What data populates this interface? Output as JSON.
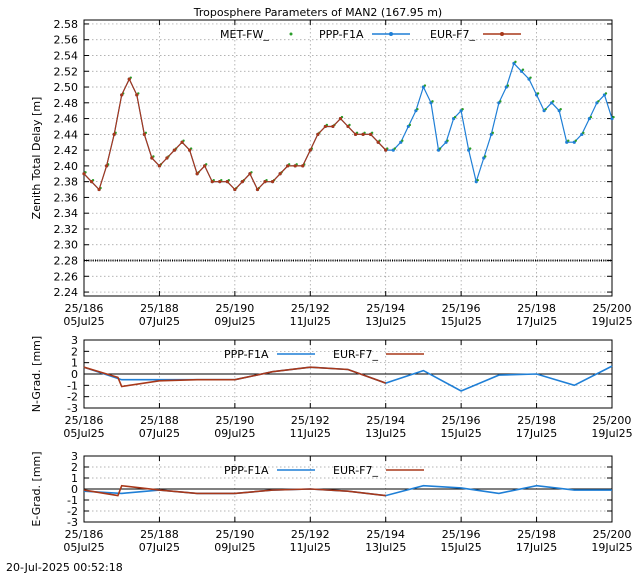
{
  "chart_data": {
    "title": "Troposphere Parameters of MAN2 (167.95 m)",
    "x_ticks": [
      {
        "top": "25/186",
        "bottom": "05Jul25"
      },
      {
        "top": "25/188",
        "bottom": "07Jul25"
      },
      {
        "top": "25/190",
        "bottom": "09Jul25"
      },
      {
        "top": "25/192",
        "bottom": "11Jul25"
      },
      {
        "top": "25/194",
        "bottom": "13Jul25"
      },
      {
        "top": "25/196",
        "bottom": "15Jul25"
      },
      {
        "top": "25/198",
        "bottom": "17Jul25"
      },
      {
        "top": "25/200",
        "bottom": "19Jul25"
      }
    ],
    "x_range_doy": [
      186,
      200
    ],
    "grid": true,
    "colors": {
      "MET-FW_": "#2a9d2a",
      "PPP-F1A": "#1f7fd6",
      "EUR-F7_": "#a8381a",
      "zero_line": "#000000"
    },
    "panels": [
      {
        "id": "ztd",
        "type": "line",
        "ylabel": "Zenith Total Delay [m]",
        "ylim": [
          2.235,
          2.585
        ],
        "yticks": [
          "2.24",
          "2.26",
          "2.28",
          "2.30",
          "2.32",
          "2.34",
          "2.36",
          "2.38",
          "2.40",
          "2.42",
          "2.44",
          "2.46",
          "2.48",
          "2.50",
          "2.52",
          "2.54",
          "2.56",
          "2.58"
        ],
        "legend": [
          "MET-FW_",
          "PPP-F1A",
          "EUR-F7_"
        ],
        "met_fw_constant": 2.28,
        "series": {
          "PPP-F1A": [
            [
              186.0,
              2.39
            ],
            [
              186.2,
              2.38
            ],
            [
              186.4,
              2.37
            ],
            [
              186.6,
              2.4
            ],
            [
              186.8,
              2.44
            ],
            [
              187.0,
              2.49
            ],
            [
              187.2,
              2.51
            ],
            [
              187.4,
              2.49
            ],
            [
              187.6,
              2.44
            ],
            [
              187.8,
              2.41
            ],
            [
              188.0,
              2.4
            ],
            [
              188.2,
              2.41
            ],
            [
              188.4,
              2.42
            ],
            [
              188.6,
              2.43
            ],
            [
              188.8,
              2.42
            ],
            [
              189.0,
              2.39
            ],
            [
              189.2,
              2.4
            ],
            [
              189.4,
              2.38
            ],
            [
              189.6,
              2.38
            ],
            [
              189.8,
              2.38
            ],
            [
              190.0,
              2.37
            ],
            [
              190.2,
              2.38
            ],
            [
              190.4,
              2.39
            ],
            [
              190.6,
              2.37
            ],
            [
              190.8,
              2.38
            ],
            [
              191.0,
              2.38
            ],
            [
              191.2,
              2.39
            ],
            [
              191.4,
              2.4
            ],
            [
              191.6,
              2.4
            ],
            [
              191.8,
              2.4
            ],
            [
              192.0,
              2.42
            ],
            [
              192.2,
              2.44
            ],
            [
              192.4,
              2.45
            ],
            [
              192.6,
              2.45
            ],
            [
              192.8,
              2.46
            ],
            [
              193.0,
              2.45
            ],
            [
              193.2,
              2.44
            ],
            [
              193.4,
              2.44
            ],
            [
              193.6,
              2.44
            ],
            [
              193.8,
              2.43
            ],
            [
              194.0,
              2.42
            ],
            [
              194.2,
              2.42
            ],
            [
              194.4,
              2.43
            ],
            [
              194.6,
              2.45
            ],
            [
              194.8,
              2.47
            ],
            [
              195.0,
              2.5
            ],
            [
              195.2,
              2.48
            ],
            [
              195.4,
              2.42
            ],
            [
              195.6,
              2.43
            ],
            [
              195.8,
              2.46
            ],
            [
              196.0,
              2.47
            ],
            [
              196.2,
              2.42
            ],
            [
              196.4,
              2.38
            ],
            [
              196.6,
              2.41
            ],
            [
              196.8,
              2.44
            ],
            [
              197.0,
              2.48
            ],
            [
              197.2,
              2.5
            ],
            [
              197.4,
              2.53
            ],
            [
              197.6,
              2.52
            ],
            [
              197.8,
              2.51
            ],
            [
              198.0,
              2.49
            ],
            [
              198.2,
              2.47
            ],
            [
              198.4,
              2.48
            ],
            [
              198.6,
              2.47
            ],
            [
              198.8,
              2.43
            ],
            [
              199.0,
              2.43
            ],
            [
              199.2,
              2.44
            ],
            [
              199.4,
              2.46
            ],
            [
              199.6,
              2.48
            ],
            [
              199.8,
              2.49
            ],
            [
              200.0,
              2.46
            ]
          ],
          "EUR-F7_": [
            [
              186.0,
              2.39
            ],
            [
              186.2,
              2.38
            ],
            [
              186.4,
              2.37
            ],
            [
              186.6,
              2.4
            ],
            [
              186.8,
              2.44
            ],
            [
              187.0,
              2.49
            ],
            [
              187.2,
              2.51
            ],
            [
              187.4,
              2.49
            ],
            [
              187.6,
              2.44
            ],
            [
              187.8,
              2.41
            ],
            [
              188.0,
              2.4
            ],
            [
              188.2,
              2.41
            ],
            [
              188.4,
              2.42
            ],
            [
              188.6,
              2.43
            ],
            [
              188.8,
              2.42
            ],
            [
              189.0,
              2.39
            ],
            [
              189.2,
              2.4
            ],
            [
              189.4,
              2.38
            ],
            [
              189.6,
              2.38
            ],
            [
              189.8,
              2.38
            ],
            [
              190.0,
              2.37
            ],
            [
              190.2,
              2.38
            ],
            [
              190.4,
              2.39
            ],
            [
              190.6,
              2.37
            ],
            [
              190.8,
              2.38
            ],
            [
              191.0,
              2.38
            ],
            [
              191.2,
              2.39
            ],
            [
              191.4,
              2.4
            ],
            [
              191.6,
              2.4
            ],
            [
              191.8,
              2.4
            ],
            [
              192.0,
              2.42
            ],
            [
              192.2,
              2.44
            ],
            [
              192.4,
              2.45
            ],
            [
              192.6,
              2.45
            ],
            [
              192.8,
              2.46
            ],
            [
              193.0,
              2.45
            ],
            [
              193.2,
              2.44
            ],
            [
              193.4,
              2.44
            ],
            [
              193.6,
              2.44
            ],
            [
              193.8,
              2.43
            ],
            [
              194.0,
              2.42
            ]
          ]
        }
      },
      {
        "id": "ngrad",
        "type": "line",
        "ylabel": "N-Grad. [mm]",
        "ylim": [
          -3,
          3
        ],
        "yticks": [
          "-3",
          "-2",
          "-1",
          "0",
          "1",
          "2",
          "3"
        ],
        "legend": [
          "PPP-F1A",
          "EUR-F7_"
        ],
        "series": {
          "PPP-F1A": [
            [
              186.0,
              0.6
            ],
            [
              187.0,
              -0.5
            ],
            [
              188.0,
              -0.5
            ],
            [
              189.0,
              -0.5
            ],
            [
              190.0,
              -0.5
            ],
            [
              191.0,
              0.2
            ],
            [
              192.0,
              0.6
            ],
            [
              193.0,
              0.4
            ],
            [
              194.0,
              -0.8
            ],
            [
              195.0,
              0.3
            ],
            [
              196.0,
              -1.5
            ],
            [
              197.0,
              -0.1
            ],
            [
              198.0,
              0.0
            ],
            [
              199.0,
              -1.0
            ],
            [
              200.0,
              0.7
            ]
          ],
          "EUR-F7_": [
            [
              186.0,
              0.6
            ],
            [
              186.9,
              -0.3
            ],
            [
              187.0,
              -1.1
            ],
            [
              188.0,
              -0.6
            ],
            [
              189.0,
              -0.5
            ],
            [
              190.0,
              -0.5
            ],
            [
              191.0,
              0.2
            ],
            [
              192.0,
              0.6
            ],
            [
              193.0,
              0.4
            ],
            [
              194.0,
              -0.8
            ]
          ]
        }
      },
      {
        "id": "egrad",
        "type": "line",
        "ylabel": "E-Grad. [mm]",
        "ylim": [
          -3,
          3
        ],
        "yticks": [
          "-3",
          "-2",
          "-1",
          "0",
          "1",
          "2",
          "3"
        ],
        "legend": [
          "PPP-F1A",
          "EUR-F7_"
        ],
        "series": {
          "PPP-F1A": [
            [
              186.0,
              -0.2
            ],
            [
              187.0,
              -0.4
            ],
            [
              188.0,
              -0.1
            ],
            [
              189.0,
              -0.4
            ],
            [
              190.0,
              -0.4
            ],
            [
              191.0,
              -0.1
            ],
            [
              192.0,
              0.0
            ],
            [
              193.0,
              -0.2
            ],
            [
              194.0,
              -0.6
            ],
            [
              195.0,
              0.3
            ],
            [
              196.0,
              0.1
            ],
            [
              197.0,
              -0.4
            ],
            [
              198.0,
              0.3
            ],
            [
              199.0,
              -0.1
            ],
            [
              200.0,
              -0.1
            ]
          ],
          "EUR-F7_": [
            [
              186.0,
              -0.1
            ],
            [
              186.9,
              -0.6
            ],
            [
              187.0,
              0.3
            ],
            [
              188.0,
              -0.1
            ],
            [
              189.0,
              -0.4
            ],
            [
              190.0,
              -0.4
            ],
            [
              191.0,
              -0.1
            ],
            [
              192.0,
              0.0
            ],
            [
              193.0,
              -0.2
            ],
            [
              194.0,
              -0.6
            ]
          ]
        }
      }
    ]
  },
  "footer": {
    "timestamp": "20-Jul-2025 00:52:18"
  }
}
